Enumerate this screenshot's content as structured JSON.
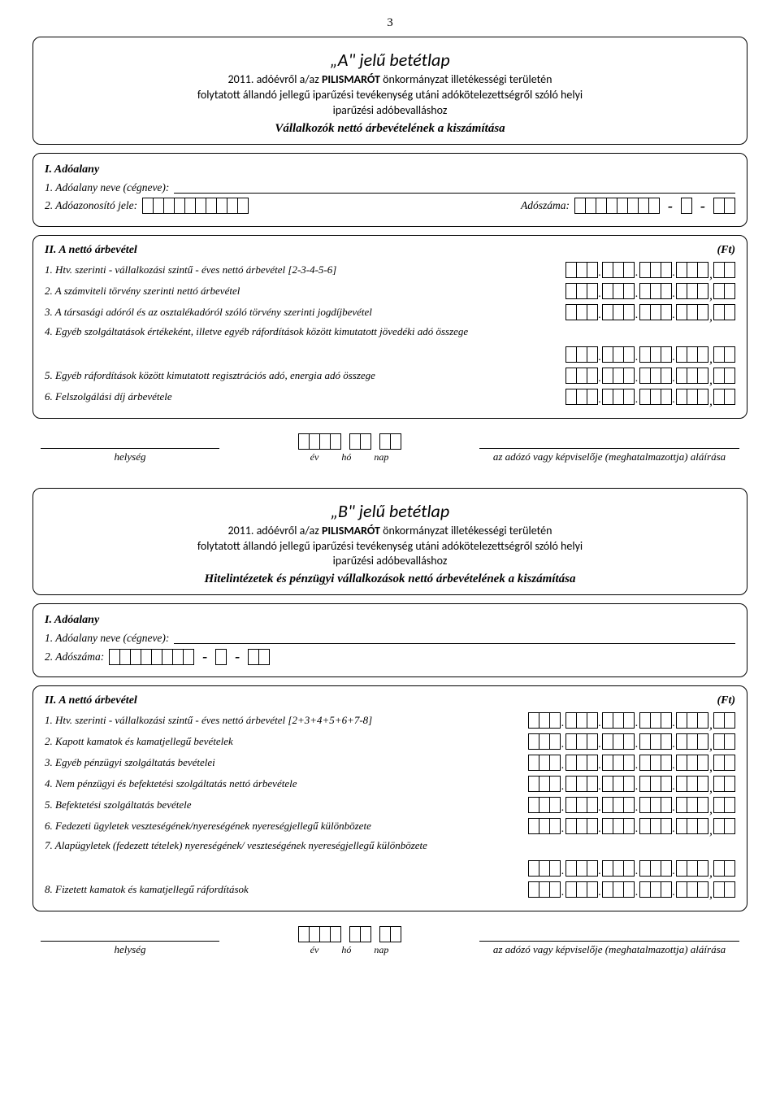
{
  "page_number": "3",
  "formA": {
    "title": "„A\" jelű betétlap",
    "subtitle_line1_pre": "2011. adóévről a/az ",
    "subtitle_line1_bold": "PILISMARÓT",
    "subtitle_line1_post": " önkormányzat illetékességi területén",
    "subtitle_line2": "folytatott állandó jellegű iparűzési tevékenység utáni adókötelezettségről szóló helyi",
    "subtitle_line3": "iparűzési adóbevalláshoz",
    "subtitle_emph": "Vállalkozók nettó árbevételének a kiszámítása",
    "s1_heading": "I. Adóalany",
    "s1_name_label": "1. Adóalany neve (cégneve):",
    "s1_id_label": "2. Adóazonosító jele:",
    "s1_tax_label": "Adószáma:",
    "s2_heading": "II. A nettó árbevétel",
    "s2_unit": "(Ft)",
    "s2_rows": [
      "1. Htv. szerinti - vállalkozási szintű - éves nettó árbevétel [2-3-4-5-6]",
      "2. A számviteli törvény szerinti nettó árbevétel",
      "3. A társasági adóról és az osztalékadóról szóló törvény szerinti jogdíjbevétel",
      "4. Egyéb szolgáltatások értékeként, illetve egyéb ráfordítások között kimutatott jövedéki adó összege",
      "5. Egyéb ráfordítások között kimutatott regisztrációs adó, energia adó összege",
      "6. Felszolgálási díj árbevétele"
    ]
  },
  "formB": {
    "title": "„B\" jelű betétlap",
    "subtitle_line1_pre": "2011. adóévről a/az ",
    "subtitle_line1_bold": "PILISMARÓT",
    "subtitle_line1_post": " önkormányzat illetékességi területén",
    "subtitle_line2": "folytatott állandó jellegű iparűzési tevékenység utáni adókötelezettségről szóló helyi",
    "subtitle_line3": "iparűzési adóbevalláshoz",
    "subtitle_emph": "Hitelintézetek és pénzügyi vállalkozások nettó árbevételének a kiszámítása",
    "s1_heading": "I. Adóalany",
    "s1_name_label": "1. Adóalany neve (cégneve):",
    "s1_tax_label": "2. Adószáma:",
    "s2_heading": "II. A nettó árbevétel",
    "s2_unit": "(Ft)",
    "s2_rows": [
      "1. Htv. szerinti - vállalkozási szintű - éves nettó árbevétel [2+3+4+5+6+7-8]",
      "2. Kapott kamatok és kamatjellegű bevételek",
      "3. Egyéb pénzügyi szolgáltatás bevételei",
      "4. Nem pénzügyi és befektetési szolgáltatás nettó árbevétele",
      "5. Befektetési szolgáltatás bevétele",
      "6. Fedezeti ügyletek veszteségének/nyereségének nyereségjellegű különbözete",
      "7. Alapügyletek (fedezett tételek) nyereségének/ veszteségének nyereségjellegű különbözete",
      "8. Fizetett kamatok és kamatjellegű ráfordítások"
    ]
  },
  "sig": {
    "place": "helység",
    "year": "év",
    "month": "hó",
    "day": "nap",
    "signer": "az adózó vagy képviselője (meghatalmazottja) aláírása"
  }
}
